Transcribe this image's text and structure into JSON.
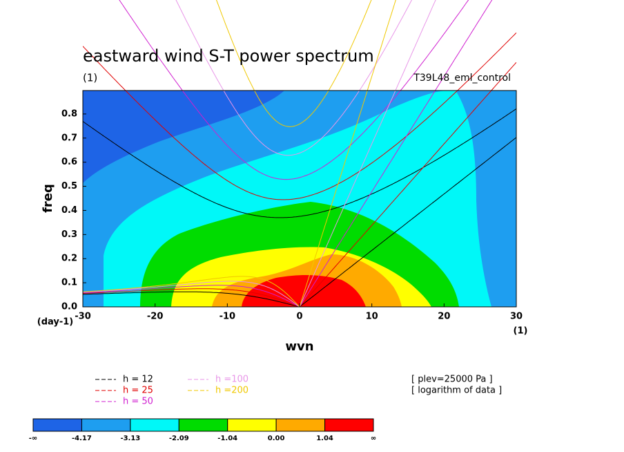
{
  "chart_data": {
    "type": "dispersion",
    "title": "eastward wind S-T power spectrum",
    "subtitle": "(1)",
    "run_name": "T39L48_eml_control",
    "x_label": "wvn",
    "y_label": "freq",
    "y_unit": "(day-1)",
    "x_unit": "(1)",
    "xlim": [
      -30,
      30
    ],
    "ylim": [
      0,
      0.9
    ],
    "xticks": [
      -30,
      -20,
      -10,
      0,
      10,
      20,
      30
    ],
    "yticks": [
      {
        "value": 0,
        "label": "0.0"
      },
      0.1,
      0.2,
      0.3,
      0.4,
      0.5,
      0.6,
      0.7,
      0.8
    ],
    "series": [
      {
        "name": "h = 12",
        "h": 12,
        "color": "#000000"
      },
      {
        "name": "h = 25",
        "h": 25,
        "color": "#e00000"
      },
      {
        "name": "h = 50",
        "h": 50,
        "color": "#d020d0"
      },
      {
        "name": "h =100",
        "h": 100,
        "color": "#e896e8"
      },
      {
        "name": "h =200",
        "h": 200,
        "color": "#f0c800"
      }
    ],
    "notes": [
      "[ plev=25000 Pa ]",
      "[ logarithm of data ]"
    ],
    "colorbar": {
      "colors": [
        "#1e64e6",
        "#1e9ef0",
        "#00f8f8",
        "#00dc00",
        "#ffff00",
        "#ffaa00",
        "#ff0000"
      ],
      "labels": [
        "-∞",
        "-4.17",
        "-3.13",
        "-2.09",
        "-1.04",
        "0.00",
        "1.04",
        "∞"
      ]
    }
  }
}
